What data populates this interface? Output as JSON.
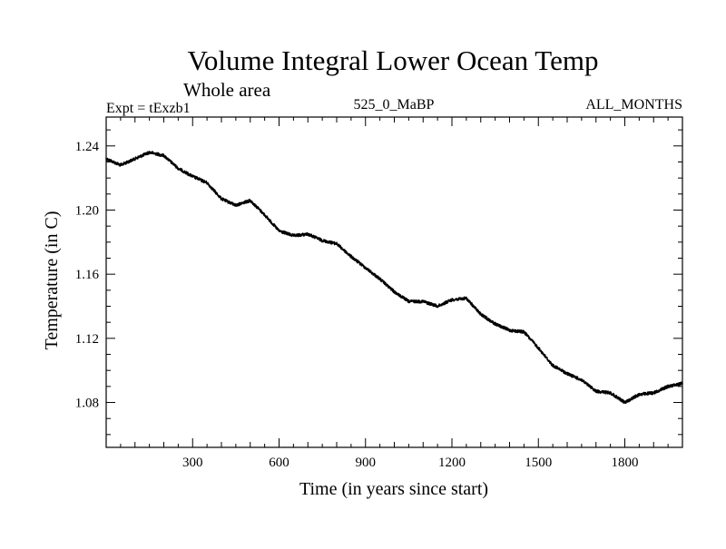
{
  "chart_data": {
    "type": "line",
    "title": "Volume Integral Lower Ocean Temp",
    "subtitle": "Whole area",
    "experiment": "Expt = tExzb1",
    "period": "525_0_MaBP",
    "months": "ALL_MONTHS",
    "xlabel": "Time (in years since start)",
    "ylabel": "Temperature (in C)",
    "xlim": [
      0,
      2000
    ],
    "ylim": [
      1.052,
      1.258
    ],
    "xticks": [
      300,
      600,
      900,
      1200,
      1500,
      1800
    ],
    "xtick_labels": [
      "300",
      "600",
      "900",
      "1200",
      "1500",
      "1800"
    ],
    "yticks": [
      1.08,
      1.12,
      1.16,
      1.2,
      1.24
    ],
    "ytick_labels": [
      "1.08",
      "1.12",
      "1.16",
      "1.20",
      "1.24"
    ],
    "series": [
      {
        "name": "Volume Integral Lower Ocean Temp",
        "color": "#000000",
        "x": [
          0,
          50,
          100,
          150,
          200,
          250,
          300,
          350,
          400,
          450,
          500,
          550,
          600,
          650,
          700,
          750,
          800,
          850,
          900,
          950,
          1000,
          1050,
          1100,
          1150,
          1200,
          1250,
          1300,
          1350,
          1400,
          1450,
          1500,
          1550,
          1600,
          1650,
          1700,
          1750,
          1800,
          1850,
          1900,
          1950,
          2000
        ],
        "values": [
          1.232,
          1.228,
          1.232,
          1.236,
          1.234,
          1.226,
          1.221,
          1.217,
          1.207,
          1.203,
          1.206,
          1.197,
          1.187,
          1.184,
          1.185,
          1.181,
          1.179,
          1.171,
          1.164,
          1.157,
          1.149,
          1.143,
          1.143,
          1.14,
          1.144,
          1.145,
          1.135,
          1.129,
          1.125,
          1.124,
          1.114,
          1.103,
          1.098,
          1.094,
          1.087,
          1.086,
          1.08,
          1.085,
          1.086,
          1.09,
          1.092
        ]
      }
    ]
  }
}
